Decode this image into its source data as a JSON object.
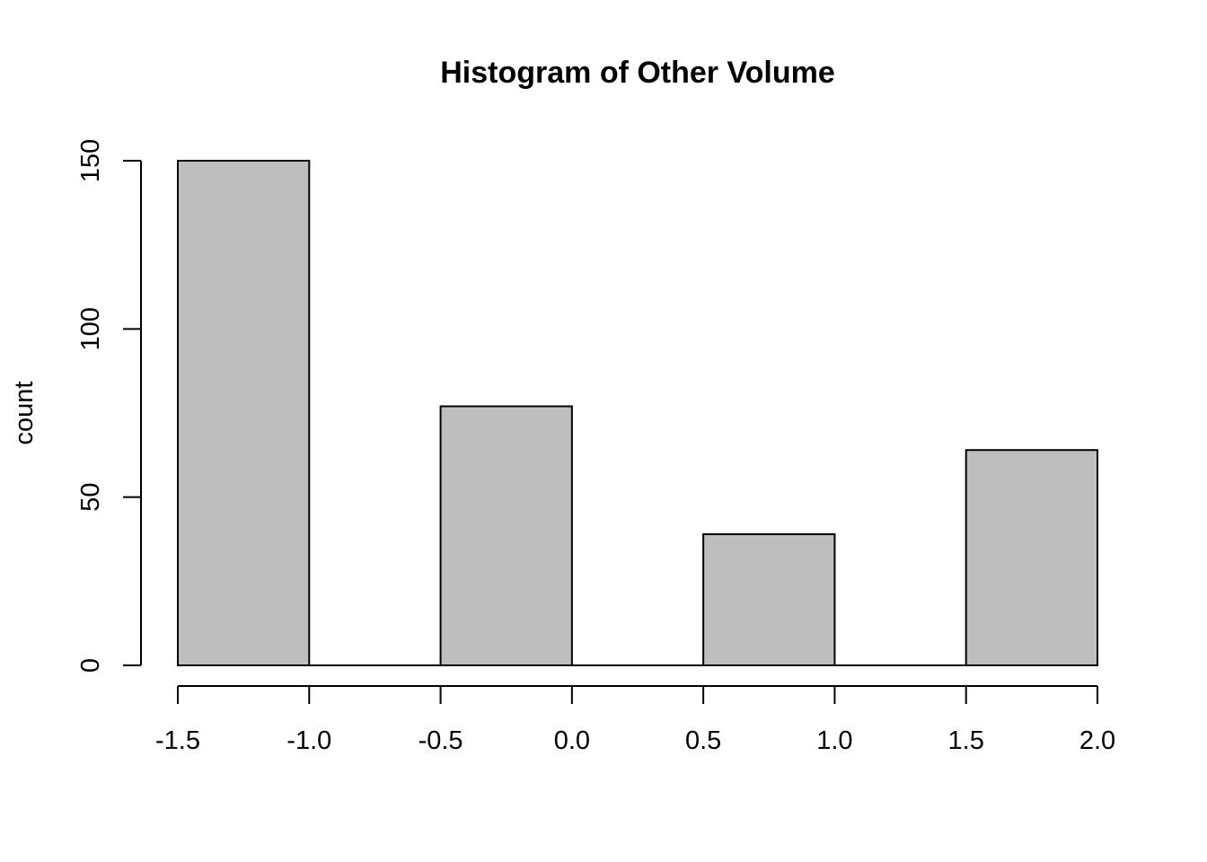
{
  "chart_data": {
    "type": "bar",
    "title": "Histogram of Other Volume",
    "xlabel": "",
    "ylabel": "count",
    "bins": [
      {
        "start": -1.5,
        "end": -1.0,
        "count": 150
      },
      {
        "start": -1.0,
        "end": -0.5,
        "count": 0
      },
      {
        "start": -0.5,
        "end": 0.0,
        "count": 77
      },
      {
        "start": 0.0,
        "end": 0.5,
        "count": 0
      },
      {
        "start": 0.5,
        "end": 1.0,
        "count": 39
      },
      {
        "start": 1.0,
        "end": 1.5,
        "count": 0
      },
      {
        "start": 1.5,
        "end": 2.0,
        "count": 64
      }
    ],
    "xlim": [
      -1.5,
      2.0
    ],
    "ylim": [
      0,
      150
    ],
    "x_ticks": [
      "-1.5",
      "-1.0",
      "-0.5",
      "0.0",
      "0.5",
      "1.0",
      "1.5",
      "2.0"
    ],
    "y_ticks": [
      "0",
      "50",
      "100",
      "150"
    ],
    "grid": false,
    "bar_fill": "#bebebe",
    "bar_stroke": "#000000"
  }
}
